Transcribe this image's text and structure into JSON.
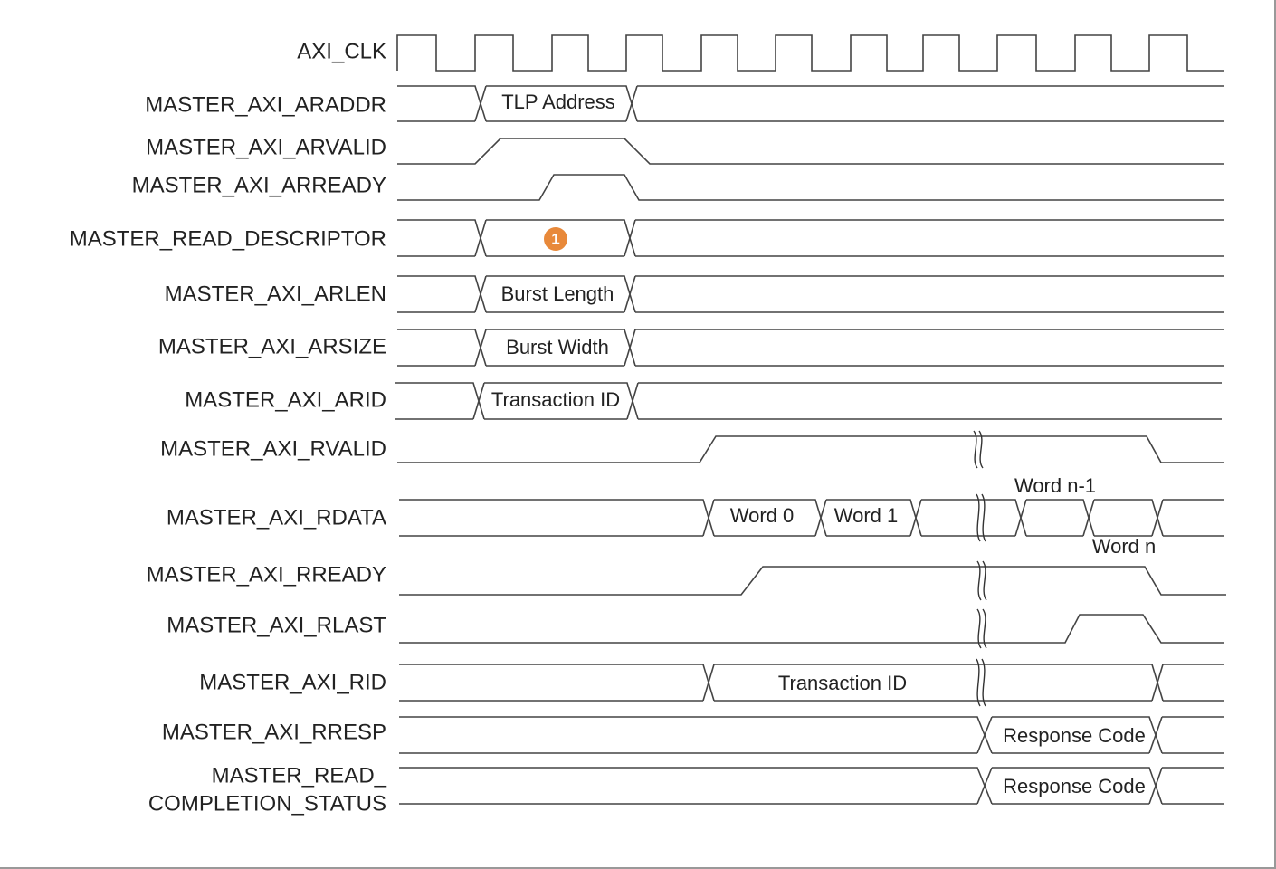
{
  "signals": [
    {
      "name": "AXI_CLK"
    },
    {
      "name": "MASTER_AXI_ARADDR",
      "values": [
        "TLP Address"
      ]
    },
    {
      "name": "MASTER_AXI_ARVALID"
    },
    {
      "name": "MASTER_AXI_ARREADY"
    },
    {
      "name": "MASTER_READ_DESCRIPTOR",
      "marker": "1"
    },
    {
      "name": "MASTER_AXI_ARLEN",
      "values": [
        "Burst Length"
      ]
    },
    {
      "name": "MASTER_AXI_ARSIZE",
      "values": [
        "Burst Width"
      ]
    },
    {
      "name": "MASTER_AXI_ARID",
      "values": [
        "Transaction ID"
      ]
    },
    {
      "name": "MASTER_AXI_RVALID"
    },
    {
      "name": "MASTER_AXI_RDATA",
      "values": [
        "Word 0",
        "Word 1",
        "Word n-1",
        "Word n"
      ]
    },
    {
      "name": "MASTER_AXI_RREADY"
    },
    {
      "name": "MASTER_AXI_RLAST"
    },
    {
      "name": "MASTER_AXI_RID",
      "values": [
        "Transaction ID"
      ]
    },
    {
      "name": "MASTER_AXI_RRESP",
      "values": [
        "Response Code"
      ]
    },
    {
      "name": "MASTER_READ_COMPLETION_STATUS",
      "name_lines": [
        "MASTER_READ_",
        "COMPLETION_STATUS"
      ],
      "values": [
        "Response Code"
      ]
    }
  ],
  "colors": {
    "line": "#444444",
    "text": "#222222",
    "marker": "#E8893A"
  }
}
